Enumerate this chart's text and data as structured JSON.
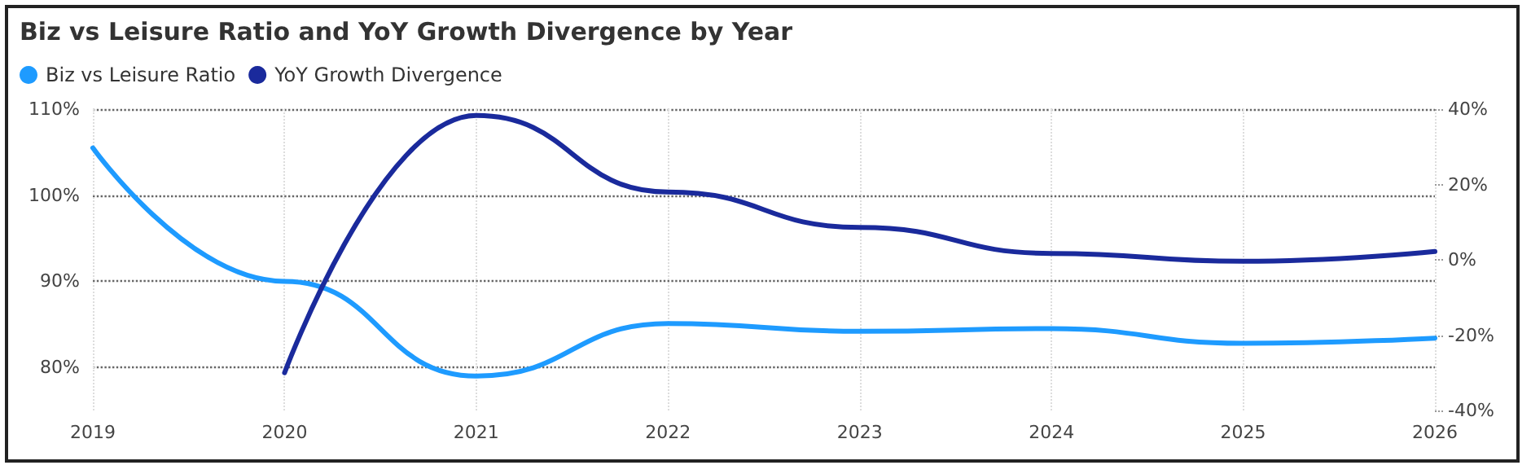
{
  "chart_data": {
    "type": "line",
    "title": "Biz vs Leisure Ratio and YoY Growth Divergence by Year",
    "categories": [
      "2019",
      "2020",
      "2021",
      "2022",
      "2023",
      "2024",
      "2025",
      "2026"
    ],
    "series": [
      {
        "name": "Biz vs Leisure Ratio",
        "color": "#1e9bff",
        "values": [
          105.5,
          90,
          79,
          85.1,
          84.2,
          84.5,
          82.8,
          83.4
        ]
      },
      {
        "name": "YoY Growth Divergence",
        "color": "#1a2a9c",
        "axis": "y2",
        "values": [
          null,
          -30,
          38.3,
          18,
          8.6,
          1.7,
          -0.4,
          2.2
        ]
      }
    ],
    "ylim": [
      75,
      110
    ],
    "yticks": [
      {
        "value": 80,
        "label": "80%"
      },
      {
        "value": 90,
        "label": "90%"
      },
      {
        "value": 100,
        "label": "100%"
      },
      {
        "value": 110,
        "label": "110%"
      }
    ],
    "y2lim": [
      -40,
      40
    ],
    "y2ticks": [
      {
        "value": -40,
        "label": "-40%"
      },
      {
        "value": -20,
        "label": "-20%"
      },
      {
        "value": 0,
        "label": "0%"
      },
      {
        "value": 20,
        "label": "20%"
      },
      {
        "value": 40,
        "label": "40%"
      }
    ],
    "grid": true,
    "legend": "top left",
    "marker": "none",
    "line_style": "solid"
  }
}
